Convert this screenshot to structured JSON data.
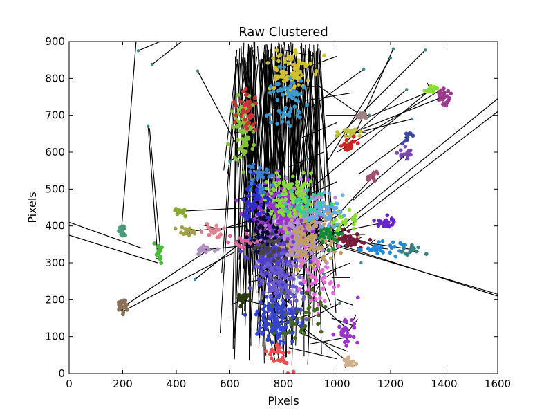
{
  "chart_data": {
    "type": "scatter",
    "title": "Raw Clustered",
    "xlabel": "Pixels",
    "ylabel": "Pixels",
    "xlim": [
      0,
      1600
    ],
    "ylim": [
      0,
      900
    ],
    "x_ticks": [
      0,
      200,
      400,
      600,
      800,
      1000,
      1200,
      1400,
      1600
    ],
    "y_ticks": [
      0,
      100,
      200,
      300,
      400,
      500,
      600,
      700,
      800,
      900
    ],
    "grid": false,
    "legend": "none",
    "line_color": "#000000",
    "clusters": [
      {
        "center": [
          845,
          390
        ],
        "spread": [
          60,
          50
        ],
        "count": 420,
        "color": "#b58fd6"
      },
      {
        "center": [
          790,
          430
        ],
        "spread": [
          55,
          45
        ],
        "count": 160,
        "color": "#9933cc"
      },
      {
        "center": [
          900,
          360
        ],
        "spread": [
          50,
          40
        ],
        "count": 120,
        "color": "#c0a060"
      },
      {
        "center": [
          760,
          300
        ],
        "spread": [
          40,
          40
        ],
        "count": 130,
        "color": "#4f3fd0"
      },
      {
        "center": [
          790,
          230
        ],
        "spread": [
          40,
          40
        ],
        "count": 120,
        "color": "#6a5acd"
      },
      {
        "center": [
          780,
          150
        ],
        "spread": [
          40,
          35
        ],
        "count": 120,
        "color": "#3344cc"
      },
      {
        "center": [
          830,
          470
        ],
        "spread": [
          50,
          30
        ],
        "count": 100,
        "color": "#88dd33"
      },
      {
        "center": [
          690,
          470
        ],
        "spread": [
          30,
          30
        ],
        "count": 50,
        "color": "#2e2ed0"
      },
      {
        "center": [
          650,
          660
        ],
        "spread": [
          18,
          40
        ],
        "count": 80,
        "color": "#88c040"
      },
      {
        "center": [
          670,
          720
        ],
        "spread": [
          20,
          30
        ],
        "count": 40,
        "color": "#cc3333"
      },
      {
        "center": [
          705,
          540
        ],
        "spread": [
          20,
          25
        ],
        "count": 30,
        "color": "#3a7fd0"
      },
      {
        "center": [
          820,
          820
        ],
        "spread": [
          40,
          35
        ],
        "count": 80,
        "color": "#d0c030"
      },
      {
        "center": [
          810,
          740
        ],
        "spread": [
          40,
          40
        ],
        "count": 60,
        "color": "#3a9ad0"
      },
      {
        "center": [
          975,
          375
        ],
        "spread": [
          20,
          15
        ],
        "count": 35,
        "color": "#118833"
      },
      {
        "center": [
          1060,
          360
        ],
        "spread": [
          25,
          10
        ],
        "count": 35,
        "color": "#7a1a3a"
      },
      {
        "center": [
          1030,
          410
        ],
        "spread": [
          20,
          15
        ],
        "count": 25,
        "color": "#88dd33"
      },
      {
        "center": [
          1160,
          340
        ],
        "spread": [
          40,
          8
        ],
        "count": 35,
        "color": "#2288dd"
      },
      {
        "center": [
          1285,
          335
        ],
        "spread": [
          25,
          6
        ],
        "count": 15,
        "color": "#3a7f7f"
      },
      {
        "center": [
          1180,
          410
        ],
        "spread": [
          18,
          8
        ],
        "count": 25,
        "color": "#6622cc"
      },
      {
        "center": [
          1050,
          650
        ],
        "spread": [
          22,
          12
        ],
        "count": 25,
        "color": "#c0c040"
      },
      {
        "center": [
          1045,
          615
        ],
        "spread": [
          12,
          10
        ],
        "count": 20,
        "color": "#cc2222"
      },
      {
        "center": [
          1090,
          700
        ],
        "spread": [
          12,
          6
        ],
        "count": 15,
        "color": "#a08080"
      },
      {
        "center": [
          1395,
          750
        ],
        "spread": [
          15,
          10
        ],
        "count": 30,
        "color": "#9b3a8a"
      },
      {
        "center": [
          1350,
          770
        ],
        "spread": [
          14,
          8
        ],
        "count": 15,
        "color": "#88dd33"
      },
      {
        "center": [
          1260,
          595
        ],
        "spread": [
          12,
          8
        ],
        "count": 15,
        "color": "#7a4ab0"
      },
      {
        "center": [
          1260,
          640
        ],
        "spread": [
          10,
          10
        ],
        "count": 10,
        "color": "#3a4aa0"
      },
      {
        "center": [
          1130,
          530
        ],
        "spread": [
          12,
          10
        ],
        "count": 14,
        "color": "#a05070"
      },
      {
        "center": [
          1040,
          120
        ],
        "spread": [
          20,
          20
        ],
        "count": 30,
        "color": "#9933cc"
      },
      {
        "center": [
          1045,
          30
        ],
        "spread": [
          12,
          6
        ],
        "count": 15,
        "color": "#d0b08a"
      },
      {
        "center": [
          780,
          50
        ],
        "spread": [
          25,
          20
        ],
        "count": 30,
        "color": "#ee5050"
      },
      {
        "center": [
          650,
          200
        ],
        "spread": [
          20,
          10
        ],
        "count": 20,
        "color": "#2a3a10"
      },
      {
        "center": [
          650,
          360
        ],
        "spread": [
          20,
          12
        ],
        "count": 20,
        "color": "#e060a0"
      },
      {
        "center": [
          540,
          385
        ],
        "spread": [
          25,
          8
        ],
        "count": 20,
        "color": "#e08090"
      },
      {
        "center": [
          500,
          335
        ],
        "spread": [
          20,
          6
        ],
        "count": 15,
        "color": "#b090c0"
      },
      {
        "center": [
          440,
          385
        ],
        "spread": [
          18,
          6
        ],
        "count": 15,
        "color": "#a0a040"
      },
      {
        "center": [
          415,
          440
        ],
        "spread": [
          12,
          6
        ],
        "count": 15,
        "color": "#88aa33"
      },
      {
        "center": [
          335,
          325
        ],
        "spread": [
          8,
          12
        ],
        "count": 18,
        "color": "#44bb33"
      },
      {
        "center": [
          195,
          385
        ],
        "spread": [
          8,
          8
        ],
        "count": 15,
        "color": "#4a9a7a"
      },
      {
        "center": [
          200,
          180
        ],
        "spread": [
          8,
          10
        ],
        "count": 20,
        "color": "#8a7055"
      },
      {
        "center": [
          880,
          460
        ],
        "spread": [
          40,
          20
        ],
        "count": 40,
        "color": "#33cc99"
      },
      {
        "center": [
          960,
          440
        ],
        "spread": [
          30,
          20
        ],
        "count": 35,
        "color": "#66aaee"
      },
      {
        "center": [
          720,
          380
        ],
        "spread": [
          25,
          30
        ],
        "count": 40,
        "color": "#0a0a40"
      },
      {
        "center": [
          760,
          340
        ],
        "spread": [
          30,
          20
        ],
        "count": 35,
        "color": "#444444"
      },
      {
        "center": [
          930,
          250
        ],
        "spread": [
          40,
          40
        ],
        "count": 45,
        "color": "#ee66dd"
      },
      {
        "center": [
          870,
          160
        ],
        "spread": [
          50,
          40
        ],
        "count": 40,
        "color": "#446622"
      }
    ],
    "stray_points": [
      [
        258,
        875
      ],
      [
        295,
        670
      ],
      [
        310,
        838
      ],
      [
        480,
        820
      ],
      [
        470,
        255
      ],
      [
        1210,
        880
      ],
      [
        1330,
        877
      ],
      [
        1200,
        855
      ],
      [
        1100,
        825
      ],
      [
        1120,
        700
      ],
      [
        1280,
        690
      ],
      [
        1260,
        770
      ],
      [
        600,
        575
      ],
      [
        890,
        580
      ],
      [
        950,
        270
      ],
      [
        1010,
        190
      ],
      [
        1090,
        300
      ]
    ],
    "lines": [
      [
        [
          0,
          410
        ],
        [
          270,
          340
        ]
      ],
      [
        [
          0,
          375
        ],
        [
          330,
          300
        ]
      ],
      [
        [
          195,
          385
        ],
        [
          250,
          900
        ]
      ],
      [
        [
          200,
          180
        ],
        [
          530,
          340
        ]
      ],
      [
        [
          205,
          170
        ],
        [
          620,
          330
        ]
      ],
      [
        [
          258,
          875
        ],
        [
          340,
          900
        ]
      ],
      [
        [
          295,
          670
        ],
        [
          330,
          320
        ]
      ],
      [
        [
          300,
          665
        ],
        [
          340,
          340
        ]
      ],
      [
        [
          1600,
          745
        ],
        [
          1000,
          390
        ]
      ],
      [
        [
          1600,
          710
        ],
        [
          990,
          370
        ]
      ],
      [
        [
          1600,
          215
        ],
        [
          1000,
          345
        ]
      ],
      [
        [
          1600,
          210
        ],
        [
          960,
          360
        ]
      ],
      [
        [
          1395,
          750
        ],
        [
          1050,
          650
        ]
      ],
      [
        [
          1390,
          770
        ],
        [
          1000,
          600
        ]
      ],
      [
        [
          1380,
          775
        ],
        [
          1100,
          690
        ]
      ],
      [
        [
          1350,
          770
        ],
        [
          900,
          500
        ]
      ],
      [
        [
          1330,
          877
        ],
        [
          960,
          610
        ]
      ],
      [
        [
          1210,
          880
        ],
        [
          1050,
          620
        ]
      ],
      [
        [
          1120,
          700
        ],
        [
          960,
          700
        ]
      ],
      [
        [
          1260,
          595
        ],
        [
          1060,
          470
        ]
      ],
      [
        [
          1270,
          640
        ],
        [
          1080,
          540
        ]
      ],
      [
        [
          1130,
          530
        ],
        [
          990,
          420
        ]
      ],
      [
        [
          1160,
          340
        ],
        [
          980,
          390
        ]
      ],
      [
        [
          1290,
          335
        ],
        [
          1060,
          360
        ]
      ],
      [
        [
          1180,
          410
        ],
        [
          980,
          380
        ]
      ],
      [
        [
          1060,
          360
        ],
        [
          900,
          300
        ]
      ],
      [
        [
          1045,
          30
        ],
        [
          880,
          120
        ]
      ],
      [
        [
          1040,
          120
        ],
        [
          870,
          230
        ]
      ],
      [
        [
          1050,
          100
        ],
        [
          900,
          80
        ]
      ],
      [
        [
          780,
          50
        ],
        [
          760,
          250
        ]
      ],
      [
        [
          770,
          30
        ],
        [
          720,
          200
        ]
      ],
      [
        [
          650,
          200
        ],
        [
          760,
          180
        ]
      ],
      [
        [
          650,
          360
        ],
        [
          800,
          400
        ]
      ],
      [
        [
          540,
          385
        ],
        [
          700,
          420
        ]
      ],
      [
        [
          500,
          335
        ],
        [
          700,
          350
        ]
      ],
      [
        [
          440,
          385
        ],
        [
          660,
          400
        ]
      ],
      [
        [
          415,
          440
        ],
        [
          690,
          450
        ]
      ],
      [
        [
          480,
          820
        ],
        [
          640,
          600
        ]
      ],
      [
        [
          470,
          255
        ],
        [
          650,
          360
        ]
      ],
      [
        [
          1200,
          855
        ],
        [
          960,
          570
        ]
      ],
      [
        [
          1100,
          825
        ],
        [
          900,
          720
        ]
      ],
      [
        [
          1090,
          700
        ],
        [
          930,
          780
        ]
      ],
      [
        [
          1280,
          690
        ],
        [
          1060,
          650
        ]
      ],
      [
        [
          1260,
          770
        ],
        [
          1020,
          620
        ]
      ],
      [
        [
          310,
          838
        ],
        [
          420,
          900
        ]
      ],
      [
        [
          600,
          575
        ],
        [
          690,
          620
        ]
      ],
      [
        [
          1010,
          190
        ],
        [
          900,
          150
        ]
      ],
      [
        [
          950,
          270
        ],
        [
          1050,
          300
        ]
      ],
      [
        [
          1000,
          40
        ],
        [
          820,
          70
        ]
      ],
      [
        [
          1040,
          60
        ],
        [
          860,
          110
        ]
      ],
      [
        [
          980,
          150
        ],
        [
          1060,
          130
        ]
      ],
      [
        [
          1000,
          200
        ],
        [
          1060,
          185
        ]
      ],
      [
        [
          980,
          260
        ],
        [
          1050,
          260
        ]
      ],
      [
        [
          700,
          120
        ],
        [
          900,
          160
        ]
      ],
      [
        [
          680,
          250
        ],
        [
          880,
          270
        ]
      ],
      [
        [
          1000,
          520
        ],
        [
          880,
          480
        ]
      ],
      [
        [
          950,
          600
        ],
        [
          820,
          560
        ]
      ],
      [
        [
          1000,
          680
        ],
        [
          870,
          640
        ]
      ],
      [
        [
          1050,
          760
        ],
        [
          880,
          740
        ]
      ],
      [
        [
          1000,
          860
        ],
        [
          850,
          820
        ]
      ]
    ],
    "column_lines": {
      "x_range": [
        620,
        940
      ],
      "y_top": [
        830,
        900
      ],
      "y_bottom": [
        20,
        600
      ],
      "count": 170
    }
  }
}
